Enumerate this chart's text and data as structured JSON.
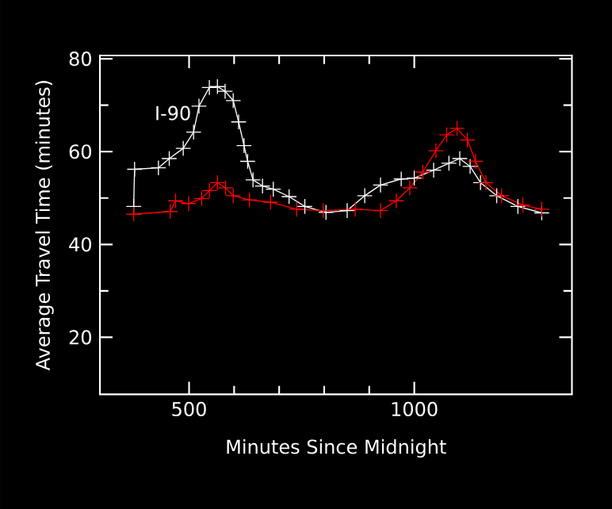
{
  "chart_data": {
    "type": "line",
    "xlabel": "Minutes Since Midnight",
    "ylabel": "Average Travel Time (minutes)",
    "xlim": [
      302,
      1350
    ],
    "ylim": [
      7.7,
      80.7
    ],
    "xticks": [
      500,
      1000
    ],
    "yticks": [
      20,
      40,
      60,
      80
    ],
    "grid": false,
    "marker": "cross",
    "line_style": "solid",
    "annotations": [
      "I-90"
    ],
    "series": [
      {
        "color": "#ffffff",
        "x": [
          377,
          379,
          432,
          456,
          487,
          510,
          522,
          545,
          563,
          580,
          598,
          610,
          622,
          630,
          642,
          663,
          687,
          722,
          757,
          804,
          851,
          890,
          925,
          971,
          1000,
          1043,
          1077,
          1101,
          1124,
          1147,
          1183,
          1230,
          1283
        ],
        "values": [
          48.2,
          56.2,
          56.5,
          58.5,
          60.7,
          64.2,
          69.8,
          73.8,
          74,
          73,
          71,
          66.4,
          61.3,
          57.9,
          53.9,
          52.6,
          51.9,
          50.3,
          48.2,
          46.9,
          47.3,
          50.5,
          52.8,
          54.1,
          54.3,
          56,
          57.5,
          58.5,
          56.8,
          53.3,
          50.5,
          48.2,
          46.8
        ]
      },
      {
        "color": "#ff0000",
        "x": [
          377,
          458,
          470,
          499,
          528,
          545,
          563,
          581,
          598,
          634,
          681,
          739,
          798,
          869,
          925,
          960,
          990,
          1019,
          1048,
          1072,
          1095,
          1118,
          1136,
          1159,
          1194,
          1241,
          1283
        ],
        "values": [
          46.5,
          47.1,
          49.4,
          48.8,
          49.9,
          51.6,
          53.3,
          52.2,
          50.5,
          49.6,
          49.1,
          47.6,
          47.3,
          47.6,
          47.3,
          49.4,
          52.2,
          55.6,
          60.2,
          63.6,
          65,
          62.5,
          57.9,
          53.3,
          50.5,
          48.5,
          47.6
        ]
      }
    ]
  }
}
